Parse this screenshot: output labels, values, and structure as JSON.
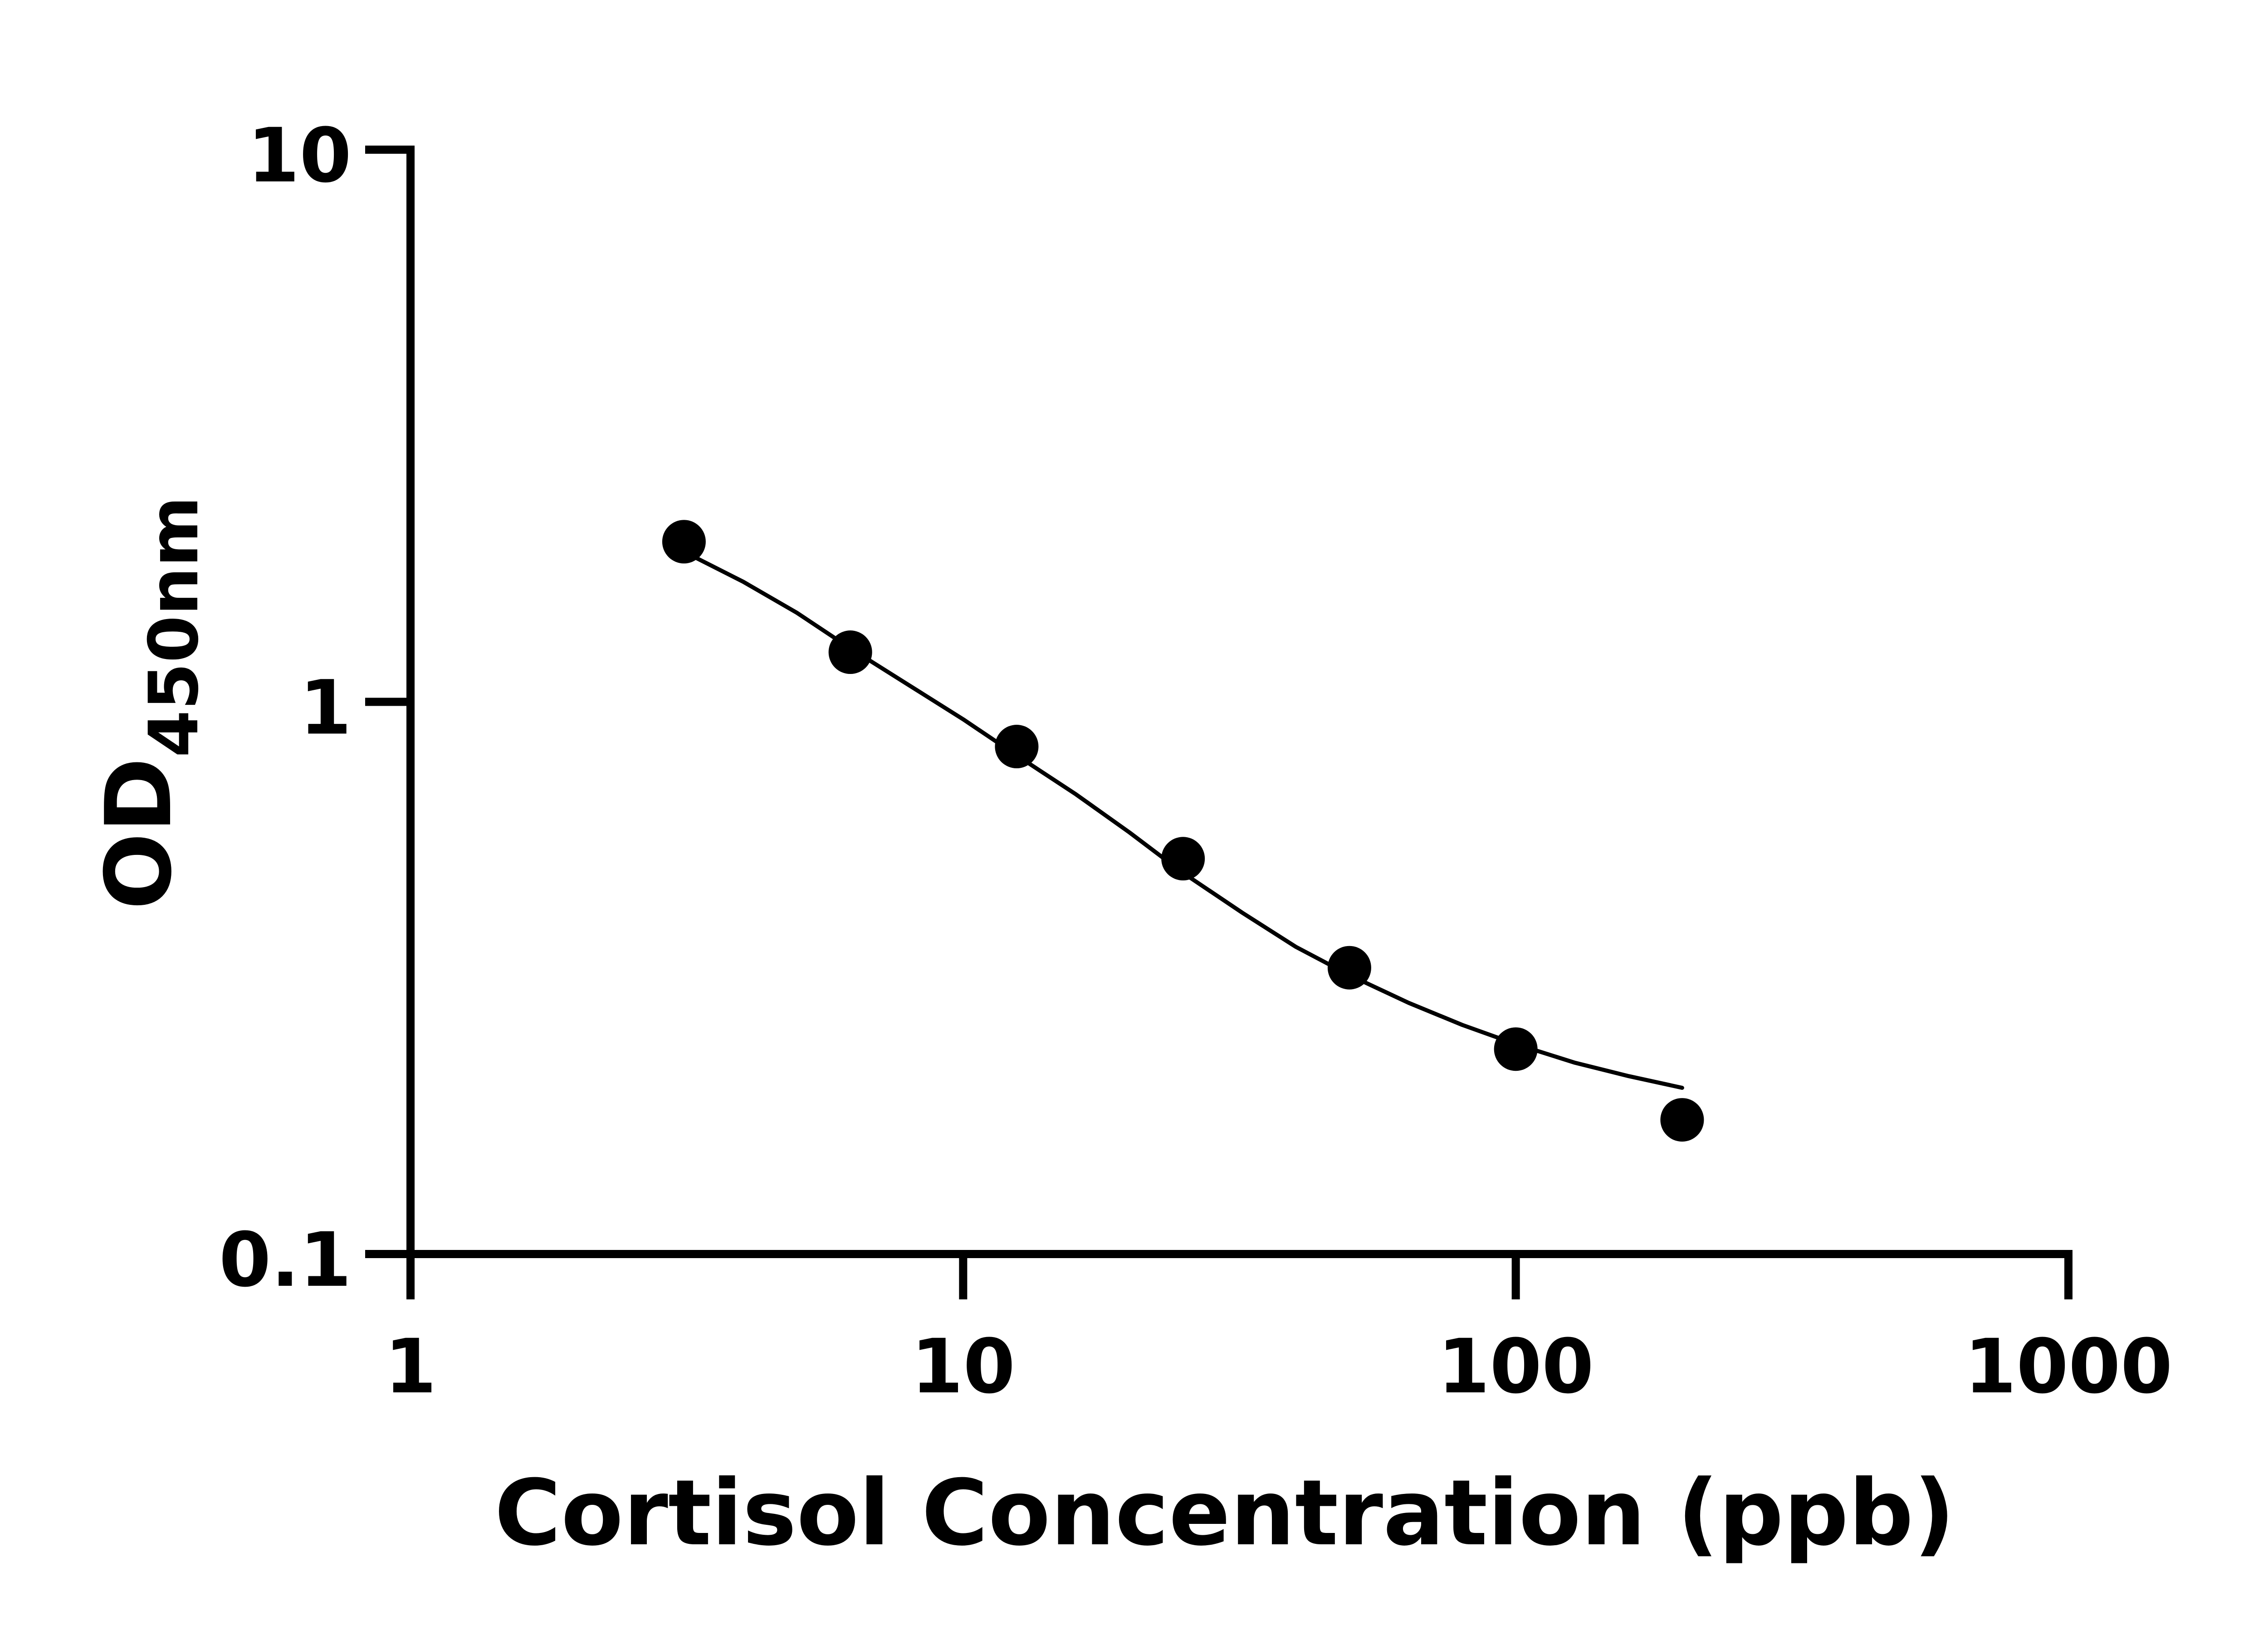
{
  "chart_data": {
    "type": "scatter",
    "xlabel": "Cortisol Concentration (ppb)",
    "ylabel": "OD",
    "ylabel_subscript": "450nm",
    "x_scale": "log",
    "y_scale": "log",
    "xlim": [
      1,
      1000
    ],
    "ylim": [
      0.1,
      10
    ],
    "x_ticks": [
      1,
      10,
      100,
      1000
    ],
    "x_tick_labels": [
      "1",
      "10",
      "100",
      "1000"
    ],
    "y_ticks": [
      0.1,
      1,
      10
    ],
    "y_tick_labels": [
      "0.1",
      "1",
      "10"
    ],
    "grid": false,
    "legend": "none",
    "series": [
      {
        "x": [
          3.125,
          6.25,
          12.5,
          25,
          50,
          100,
          200
        ],
        "y": [
          1.95,
          1.23,
          0.83,
          0.52,
          0.33,
          0.235,
          0.175
        ]
      }
    ],
    "fit_curve": {
      "type": "line",
      "x": [
        3.125,
        4,
        5,
        6.25,
        8,
        10,
        12.5,
        16,
        20,
        25,
        32,
        40,
        50,
        64,
        80,
        100,
        128,
        160,
        200
      ],
      "y": [
        1.87,
        1.65,
        1.45,
        1.25,
        1.07,
        0.93,
        0.8,
        0.68,
        0.58,
        0.49,
        0.415,
        0.36,
        0.32,
        0.285,
        0.26,
        0.24,
        0.222,
        0.21,
        0.2
      ]
    },
    "colors": {
      "axis": "#000000",
      "marker": "#000000",
      "curve": "#000000",
      "background": "#ffffff"
    }
  }
}
